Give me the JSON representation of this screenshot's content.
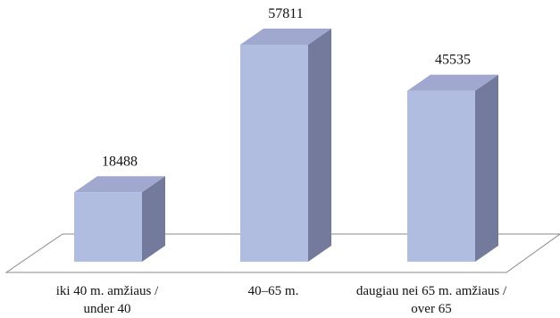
{
  "chart_data": {
    "type": "bar",
    "three_d": true,
    "categories": [
      {
        "line1": "iki 40 m. amžiaus /",
        "line2": "under 40"
      },
      {
        "line1": "40–65 m.",
        "line2": ""
      },
      {
        "line1": "daugiau nei 65 m. amžiaus /",
        "line2": "over 65"
      }
    ],
    "values": [
      18488,
      57811,
      45535
    ],
    "value_labels": [
      "18488",
      "57811",
      "45535"
    ],
    "title": "",
    "xlabel": "",
    "ylabel": "",
    "ylim": [
      0,
      57811
    ],
    "grid": false,
    "legend": "none",
    "colors": {
      "front": "#b0bde0",
      "top": "#a0a8cf",
      "side": "#747a9c",
      "floor_edge": "#8a8a8a"
    }
  }
}
